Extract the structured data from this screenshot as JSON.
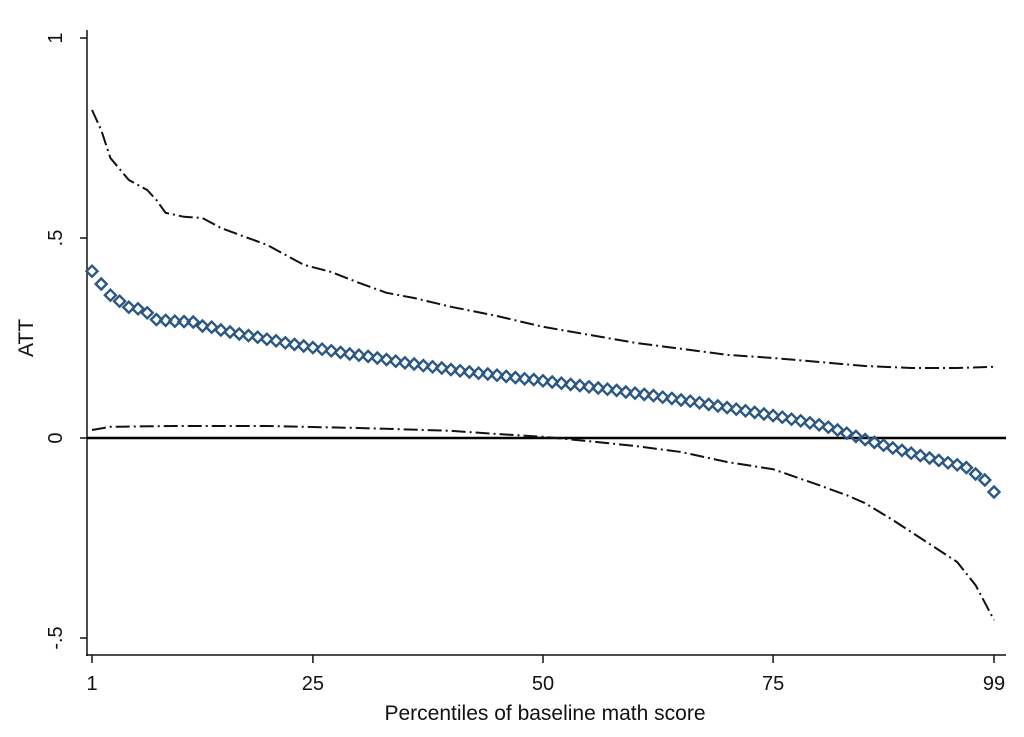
{
  "chart_data": {
    "type": "scatter",
    "title": "",
    "xlabel": "Percentiles of baseline math score",
    "ylabel": "ATT",
    "xlim": [
      1,
      99
    ],
    "ylim": [
      -0.5,
      1
    ],
    "xticks": [
      {
        "v": 1,
        "label": "1"
      },
      {
        "v": 25,
        "label": "25"
      },
      {
        "v": 50,
        "label": "50"
      },
      {
        "v": 75,
        "label": "75"
      },
      {
        "v": 99,
        "label": "99"
      }
    ],
    "yticks": [
      {
        "v": -0.5,
        "label": "-.5"
      },
      {
        "v": 0,
        "label": "0"
      },
      {
        "v": 0.5,
        "label": ".5"
      },
      {
        "v": 1,
        "label": "1"
      }
    ],
    "reference_line": 0,
    "grid": false,
    "colors": {
      "marker": "#2a5783",
      "ci": "#111111",
      "axis": "#111111"
    },
    "att": {
      "name": "ATT",
      "marker": "hollow-diamond",
      "x_start": 1,
      "values": [
        0.417,
        0.385,
        0.357,
        0.342,
        0.327,
        0.323,
        0.313,
        0.296,
        0.294,
        0.292,
        0.291,
        0.29,
        0.28,
        0.277,
        0.27,
        0.265,
        0.26,
        0.256,
        0.252,
        0.247,
        0.243,
        0.238,
        0.234,
        0.23,
        0.226,
        0.222,
        0.218,
        0.214,
        0.21,
        0.207,
        0.204,
        0.2,
        0.196,
        0.192,
        0.188,
        0.185,
        0.181,
        0.178,
        0.175,
        0.171,
        0.168,
        0.165,
        0.162,
        0.16,
        0.157,
        0.154,
        0.151,
        0.148,
        0.146,
        0.143,
        0.14,
        0.137,
        0.134,
        0.131,
        0.128,
        0.125,
        0.122,
        0.119,
        0.115,
        0.112,
        0.109,
        0.106,
        0.102,
        0.099,
        0.095,
        0.092,
        0.088,
        0.084,
        0.08,
        0.076,
        0.072,
        0.068,
        0.064,
        0.06,
        0.056,
        0.052,
        0.047,
        0.043,
        0.038,
        0.033,
        0.027,
        0.02,
        0.012,
        0.004,
        -0.004,
        -0.011,
        -0.018,
        -0.025,
        -0.031,
        -0.038,
        -0.044,
        -0.05,
        -0.056,
        -0.062,
        -0.067,
        -0.074,
        -0.09,
        -0.105,
        -0.135
      ]
    },
    "ci_upper": {
      "name": "Upper confidence bound",
      "points": [
        [
          1,
          0.82
        ],
        [
          2,
          0.77
        ],
        [
          3,
          0.7
        ],
        [
          5,
          0.645
        ],
        [
          7,
          0.62
        ],
        [
          8,
          0.595
        ],
        [
          9,
          0.563
        ],
        [
          11,
          0.553
        ],
        [
          13,
          0.55
        ],
        [
          15,
          0.525
        ],
        [
          17,
          0.508
        ],
        [
          20,
          0.483
        ],
        [
          22,
          0.458
        ],
        [
          24,
          0.433
        ],
        [
          27,
          0.415
        ],
        [
          30,
          0.388
        ],
        [
          33,
          0.363
        ],
        [
          36,
          0.35
        ],
        [
          40,
          0.328
        ],
        [
          45,
          0.305
        ],
        [
          50,
          0.278
        ],
        [
          55,
          0.258
        ],
        [
          60,
          0.238
        ],
        [
          65,
          0.223
        ],
        [
          70,
          0.208
        ],
        [
          75,
          0.2
        ],
        [
          80,
          0.19
        ],
        [
          85,
          0.18
        ],
        [
          90,
          0.175
        ],
        [
          95,
          0.175
        ],
        [
          99,
          0.178
        ]
      ]
    },
    "ci_lower": {
      "name": "Lower confidence bound",
      "points": [
        [
          1,
          0.02
        ],
        [
          3,
          0.028
        ],
        [
          10,
          0.03
        ],
        [
          20,
          0.03
        ],
        [
          30,
          0.025
        ],
        [
          40,
          0.018
        ],
        [
          45,
          0.01
        ],
        [
          50,
          0.003
        ],
        [
          55,
          -0.008
        ],
        [
          60,
          -0.02
        ],
        [
          65,
          -0.035
        ],
        [
          70,
          -0.06
        ],
        [
          75,
          -0.078
        ],
        [
          80,
          -0.118
        ],
        [
          83,
          -0.143
        ],
        [
          85,
          -0.163
        ],
        [
          88,
          -0.205
        ],
        [
          90,
          -0.235
        ],
        [
          93,
          -0.28
        ],
        [
          95,
          -0.31
        ],
        [
          97,
          -0.368
        ],
        [
          99,
          -0.455
        ]
      ]
    }
  }
}
